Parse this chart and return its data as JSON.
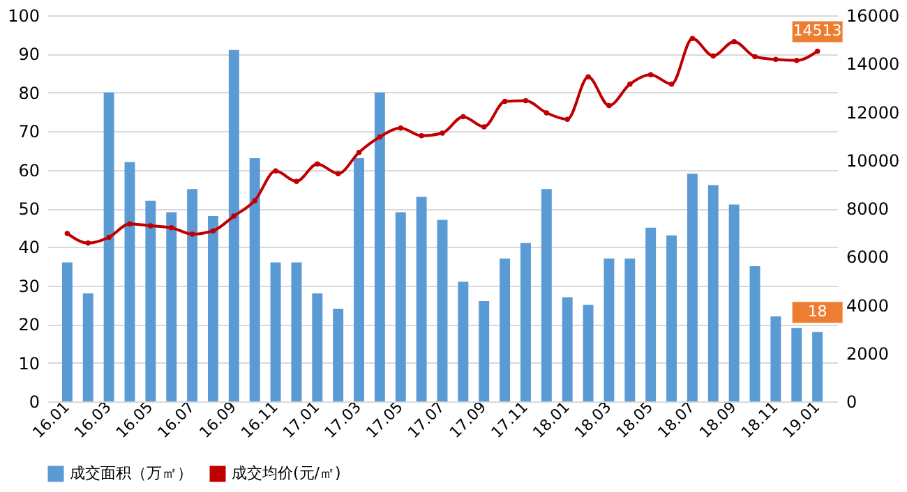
{
  "chart_data": {
    "type": "bar",
    "categories": [
      "16.01",
      null,
      "16.03",
      null,
      "16.05",
      null,
      "16.07",
      null,
      "16.09",
      null,
      "16.11",
      null,
      "17.01",
      null,
      "17.03",
      null,
      "17.05",
      null,
      "17.07",
      null,
      "17.09",
      null,
      "17.11",
      null,
      "18.01",
      null,
      "18.03",
      null,
      "18.05",
      null,
      "18.07",
      null,
      "18.09",
      null,
      "18.11",
      null,
      "19.01"
    ],
    "series": [
      {
        "name": "成交面积（万㎡）",
        "type": "bar",
        "color": "#5b9bd5",
        "values": [
          36,
          28,
          80,
          62,
          52,
          49,
          55,
          48,
          91,
          63,
          36,
          36,
          28,
          24,
          63,
          80,
          49,
          53,
          47,
          31,
          26,
          37,
          41,
          55,
          27,
          25,
          37,
          37,
          45,
          43,
          59,
          56,
          51,
          35,
          22,
          19,
          18
        ],
        "value_labels": [
          null,
          null,
          null,
          null,
          null,
          null,
          null,
          null,
          null,
          null,
          null,
          null,
          null,
          null,
          null,
          null,
          null,
          null,
          null,
          null,
          null,
          null,
          null,
          null,
          null,
          null,
          null,
          null,
          null,
          null,
          null,
          null,
          null,
          null,
          null,
          null,
          "18"
        ]
      },
      {
        "name": "成交均价(元/㎡)",
        "type": "line",
        "axis": "y2",
        "color": "#c00000",
        "marker": "circle",
        "values": [
          6960,
          6560,
          6800,
          7360,
          7280,
          7200,
          6930,
          7070,
          7680,
          8320,
          9550,
          9120,
          9840,
          9440,
          10320,
          10960,
          11330,
          11010,
          11120,
          11800,
          11380,
          12430,
          12460,
          11960,
          11690,
          13450,
          12260,
          13150,
          13540,
          13150,
          15040,
          14320,
          14910,
          14290,
          14170,
          14130,
          14513
        ],
        "value_labels": [
          null,
          null,
          null,
          null,
          null,
          null,
          null,
          null,
          null,
          null,
          null,
          null,
          null,
          null,
          null,
          null,
          null,
          null,
          null,
          null,
          null,
          null,
          null,
          null,
          null,
          null,
          null,
          null,
          null,
          null,
          null,
          null,
          null,
          null,
          null,
          null,
          "14513"
        ]
      }
    ],
    "ylim": [
      0,
      100
    ],
    "yticks": [
      0,
      10,
      20,
      30,
      40,
      50,
      60,
      70,
      80,
      90,
      100
    ],
    "y2lim": [
      0,
      16000
    ],
    "y2ticks": [
      0,
      2000,
      4000,
      6000,
      8000,
      10000,
      12000,
      14000,
      16000
    ],
    "grid": "y",
    "legend": "bottom"
  }
}
